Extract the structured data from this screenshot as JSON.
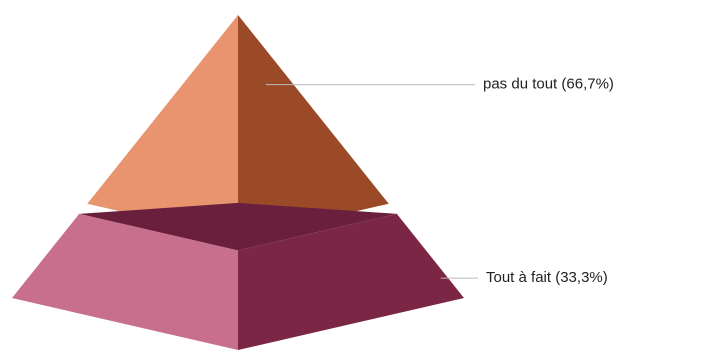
{
  "chart_data": {
    "type": "pyramid",
    "categories": [
      "pas du tout",
      "Tout à fait"
    ],
    "values": [
      66.7,
      33.3
    ],
    "value_labels": [
      "(66,7%)",
      "(33,3%)"
    ],
    "colors": [
      "#e8956f",
      "#c96f8e"
    ],
    "shade_colors": [
      "#9b4a28",
      "#7b2644"
    ],
    "top_colors": [
      "#9b4a28",
      "#6a1f3c"
    ]
  }
}
